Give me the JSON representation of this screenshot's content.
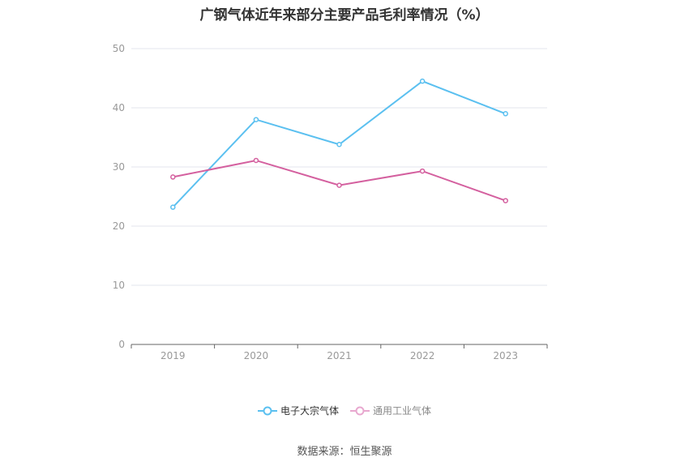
{
  "chart_data": {
    "type": "line",
    "title": "广钢气体近年来部分主要产品毛利率情况（%）",
    "categories": [
      "2019",
      "2020",
      "2021",
      "2022",
      "2023"
    ],
    "series": [
      {
        "name": "电子大宗气体",
        "color": "#5bc0f0",
        "values": [
          23.2,
          38.0,
          33.8,
          44.5,
          39.0
        ]
      },
      {
        "name": "通用工业气体",
        "color": "#d4609f",
        "values": [
          28.3,
          31.1,
          26.9,
          29.3,
          24.3
        ]
      }
    ],
    "ylim": [
      0,
      50
    ],
    "yticks": [
      0,
      10,
      20,
      30,
      40,
      50
    ],
    "grid": true,
    "legend": "bottom-center",
    "source": "数据来源：恒生聚源"
  }
}
